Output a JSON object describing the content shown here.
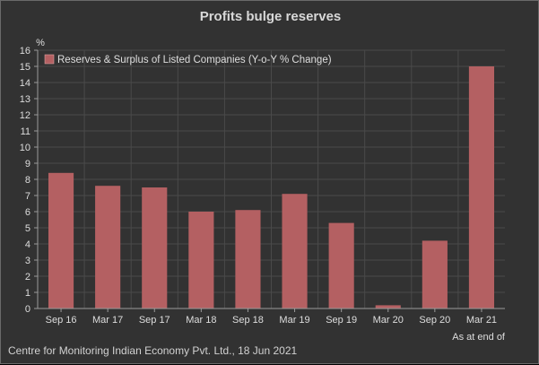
{
  "title": "Profits bulge reserves",
  "credit": "Centre for Monitoring Indian Economy Pvt. Ltd., 18 Jun 2021",
  "colors": {
    "background": "#323232",
    "bar": "#b46062",
    "grid": "#4a4a4a",
    "axis": "#9a9a9a",
    "text": "#dedede"
  },
  "chart_data": {
    "type": "bar",
    "title": "Profits bulge reserves",
    "ylabel": "%",
    "xlabel": "As at end of",
    "categories": [
      "Sep 16",
      "Mar 17",
      "Sep 17",
      "Mar 18",
      "Sep 18",
      "Mar 19",
      "Sep 19",
      "Mar 20",
      "Sep 20",
      "Mar 21"
    ],
    "series": [
      {
        "name": "Reserves & Surplus of Listed Companies (Y-o-Y % Change)",
        "values": [
          8.4,
          7.6,
          7.5,
          6.0,
          6.1,
          7.1,
          5.3,
          0.2,
          4.2,
          15.0
        ]
      }
    ],
    "ylim": [
      0,
      16
    ],
    "yticks": [
      0,
      1,
      2,
      3,
      4,
      5,
      6,
      7,
      8,
      9,
      10,
      11,
      12,
      13,
      14,
      15,
      16
    ],
    "grid": true,
    "legend_position": "top-left"
  }
}
